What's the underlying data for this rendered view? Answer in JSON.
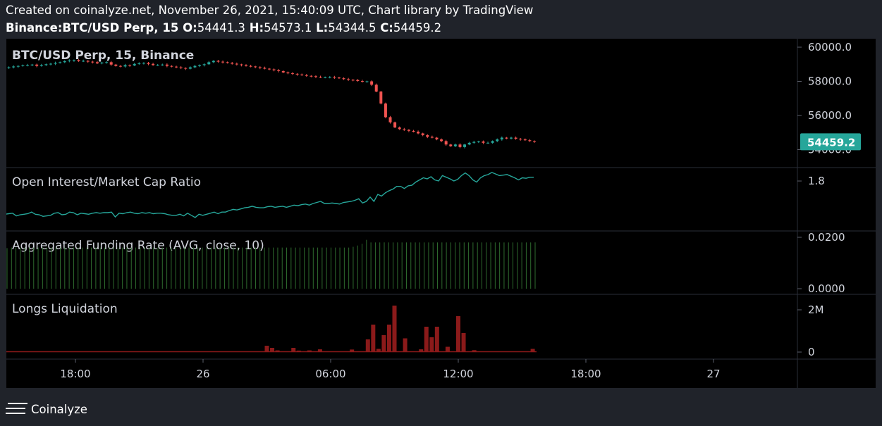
{
  "header": {
    "line1": "Created on coinalyze.net, November 26, 2021, 15:40:09 UTC, Chart library by TradingView",
    "symbol": "Binance:BTC/USD Perp, 15",
    "o_label": "O:",
    "o_value": "54441.3",
    "h_label": "H:",
    "h_value": "54573.1",
    "l_label": "L:",
    "l_value": "54344.5",
    "c_label": "C:",
    "c_value": "54459.2"
  },
  "footer": {
    "brand": "Coinalyze"
  },
  "colors": {
    "background": "#000000",
    "page": "#20232a",
    "grid": "#2a2e39",
    "text": "#ffffff",
    "axis_text": "#d1d4dc",
    "candle_up": "#26a69a",
    "candle_down": "#ef5350",
    "oi_line": "#26a69a",
    "funding_bar": "#2e6b2e",
    "liquidation_bar": "#8b1a1a",
    "price_tag": "#26a69a"
  },
  "chart_data": [
    {
      "type": "candlestick",
      "title": "BTC/USD Perp, 15, Binance",
      "ylim": [
        53500,
        60200
      ],
      "y_ticks": [
        "60000.0",
        "58000.0",
        "56000.0",
        "54000.0"
      ],
      "last_price": "54459.2",
      "note": "15-minute candles from Nov 25 ~15:30 to Nov 26 ~15:40 UTC; close values",
      "close": [
        58780,
        58820,
        58870,
        58900,
        58930,
        58950,
        58980,
        58900,
        58950,
        59000,
        59030,
        59080,
        59120,
        59180,
        59220,
        59240,
        59180,
        59200,
        59150,
        59120,
        59050,
        59100,
        59120,
        58980,
        58900,
        58870,
        58950,
        58930,
        59020,
        59050,
        59080,
        59020,
        58950,
        58970,
        58980,
        58900,
        58860,
        58820,
        58780,
        58740,
        58820,
        58900,
        58950,
        59000,
        59120,
        59200,
        59150,
        59120,
        59080,
        59030,
        58990,
        58950,
        58900,
        58870,
        58830,
        58790,
        58740,
        58700,
        58650,
        58600,
        58520,
        58470,
        58440,
        58400,
        58360,
        58320,
        58300,
        58260,
        58230,
        58240,
        58250,
        58220,
        58180,
        58130,
        58090,
        58080,
        58020,
        57980,
        58000,
        57800,
        57400,
        56700,
        55900,
        55600,
        55300,
        55200,
        55160,
        55100,
        55050,
        54950,
        54850,
        54750,
        54700,
        54600,
        54500,
        54300,
        54200,
        54300,
        54150,
        54300,
        54400,
        54450,
        54480,
        54400,
        54400,
        54500,
        54600,
        54700,
        54650,
        54700,
        54640,
        54600,
        54550,
        54500,
        54459
      ]
    },
    {
      "type": "line",
      "title": "Open Interest/Market Cap Ratio",
      "ylim": [
        1.0,
        2.05
      ],
      "y_ticks": [
        "1.8"
      ],
      "values": [
        1.18,
        1.19,
        1.2,
        1.15,
        1.17,
        1.18,
        1.19,
        1.22,
        1.18,
        1.17,
        1.14,
        1.15,
        1.16,
        1.2,
        1.21,
        1.17,
        1.18,
        1.22,
        1.21,
        1.17,
        1.2,
        1.19,
        1.18,
        1.2,
        1.21,
        1.2,
        1.21,
        1.21,
        1.22,
        1.13,
        1.2,
        1.19,
        1.21,
        1.22,
        1.2,
        1.19,
        1.21,
        1.2,
        1.21,
        1.19,
        1.2,
        1.2,
        1.19,
        1.17,
        1.16,
        1.16,
        1.18,
        1.15,
        1.2,
        1.16,
        1.12,
        1.18,
        1.16,
        1.18,
        1.2,
        1.22,
        1.19,
        1.22,
        1.22,
        1.25,
        1.27,
        1.26,
        1.28,
        1.3,
        1.31,
        1.33,
        1.31,
        1.3,
        1.3,
        1.32,
        1.33,
        1.31,
        1.32,
        1.33,
        1.31,
        1.33,
        1.35,
        1.34,
        1.36,
        1.37,
        1.35,
        1.38,
        1.4,
        1.42,
        1.38,
        1.38,
        1.39,
        1.38,
        1.37,
        1.4,
        1.41,
        1.42,
        1.44,
        1.47,
        1.39,
        1.42,
        1.5,
        1.42,
        1.55,
        1.52,
        1.58,
        1.62,
        1.65,
        1.7,
        1.7,
        1.66,
        1.71,
        1.72,
        1.78,
        1.82,
        1.86,
        1.84,
        1.88,
        1.82,
        1.8,
        1.9,
        1.87,
        1.84,
        1.8,
        1.83,
        1.9,
        1.95,
        1.9,
        1.82,
        1.78,
        1.86,
        1.9,
        1.92,
        1.96,
        1.93,
        1.9,
        1.91,
        1.92,
        1.89,
        1.86,
        1.82,
        1.86,
        1.85,
        1.87,
        1.87
      ]
    },
    {
      "type": "bar",
      "title": "Aggregated Funding Rate (AVG, close, 10)",
      "ylim": [
        0,
        0.026
      ],
      "y_ticks": [
        "0.0200",
        "0.0000"
      ],
      "values": [
        0.0158,
        0.016,
        0.016,
        0.016,
        0.016,
        0.016,
        0.016,
        0.016,
        0.016,
        0.016,
        0.016,
        0.016,
        0.016,
        0.016,
        0.016,
        0.016,
        0.016,
        0.016,
        0.016,
        0.016,
        0.016,
        0.016,
        0.016,
        0.016,
        0.016,
        0.016,
        0.016,
        0.016,
        0.016,
        0.016,
        0.016,
        0.016,
        0.016,
        0.016,
        0.016,
        0.016,
        0.016,
        0.016,
        0.016,
        0.016,
        0.016,
        0.016,
        0.016,
        0.016,
        0.016,
        0.016,
        0.016,
        0.016,
        0.016,
        0.016,
        0.016,
        0.016,
        0.016,
        0.016,
        0.016,
        0.016,
        0.016,
        0.016,
        0.016,
        0.016,
        0.016,
        0.016,
        0.016,
        0.016,
        0.016,
        0.016,
        0.016,
        0.016,
        0.016,
        0.016,
        0.016,
        0.016,
        0.016,
        0.016,
        0.016,
        0.016,
        0.016,
        0.016,
        0.0163,
        0.0168,
        0.0175,
        0.019,
        0.018,
        0.018,
        0.018,
        0.018,
        0.018,
        0.018,
        0.018,
        0.018,
        0.018,
        0.018,
        0.018,
        0.018,
        0.018,
        0.018,
        0.018,
        0.018,
        0.018,
        0.018,
        0.018,
        0.018,
        0.018,
        0.018,
        0.018,
        0.018,
        0.018,
        0.018,
        0.018,
        0.018,
        0.018,
        0.018,
        0.018,
        0.018,
        0.018,
        0.018,
        0.018,
        0.018,
        0.018,
        0.018
      ]
    },
    {
      "type": "bar",
      "title": "Longs Liquidation",
      "ylim": [
        0,
        2300000
      ],
      "y_ticks": [
        "2M",
        "0"
      ],
      "values": [
        10000,
        10000,
        10000,
        10000,
        10000,
        10000,
        10000,
        10000,
        10000,
        10000,
        10000,
        10000,
        10000,
        10000,
        10000,
        10000,
        10000,
        10000,
        10000,
        10000,
        10000,
        10000,
        10000,
        10000,
        10000,
        10000,
        10000,
        10000,
        10000,
        10000,
        10000,
        10000,
        10000,
        10000,
        10000,
        10000,
        10000,
        10000,
        10000,
        10000,
        10000,
        10000,
        10000,
        10000,
        10000,
        10000,
        10000,
        10000,
        10000,
        10000,
        10000,
        10000,
        10000,
        10000,
        10000,
        10000,
        10000,
        10000,
        10000,
        10000,
        10000,
        10000,
        10000,
        10000,
        10000,
        10000,
        10000,
        10000,
        10000,
        10000,
        10000,
        10000,
        10000,
        10000,
        10000,
        10000,
        10000,
        10000,
        10000,
        10000,
        10000,
        10000,
        10000,
        10000,
        10000,
        10000,
        10000,
        10000,
        10000,
        10000,
        10000,
        10000,
        10000,
        10000,
        10000,
        10000,
        10000,
        10000,
        10000,
        10000,
        10000,
        10000,
        10000,
        10000,
        10000,
        10000,
        10000,
        10000,
        10000,
        10000,
        10000,
        10000,
        10000,
        10000,
        10000,
        10000,
        10000,
        10000,
        10000,
        10000,
        10000,
        10000,
        10000,
        10000,
        10000,
        10000,
        10000,
        10000,
        10000,
        10000,
        10000,
        10000,
        10000,
        10000,
        10000,
        10000,
        10000,
        10000,
        10000,
        10000,
        10000,
        10000,
        10000,
        10000,
        10000,
        10000,
        10000,
        10000,
        10000,
        10000,
        10000,
        10000,
        10000,
        10000,
        10000,
        10000,
        10000,
        10000,
        10000,
        10000,
        10000,
        10000,
        10000,
        10000,
        10000,
        10000,
        10000,
        10000,
        10000,
        10000,
        10000,
        10000,
        10000,
        10000,
        10000,
        10000,
        10000,
        10000,
        10000,
        10000,
        10000,
        10000,
        10000,
        10000,
        10000,
        10000,
        10000,
        10000,
        10000,
        10000,
        10000,
        10000,
        10000,
        10000,
        10000,
        10000,
        10000,
        10000,
        10000,
        10000,
        10000,
        10000,
        10000,
        10000,
        10000,
        10000,
        10000,
        10000,
        10000,
        10000,
        10000,
        10000,
        10000,
        10000,
        10000,
        10000,
        10000,
        10000,
        10000,
        10000,
        10000,
        10000,
        10000,
        10000,
        10000,
        10000,
        10000,
        10000,
        10000,
        10000,
        10000,
        10000,
        10000,
        10000,
        10000,
        10000,
        10000,
        10000,
        10000,
        10000,
        10000,
        10000,
        10000,
        10000,
        10000,
        10000,
        10000,
        10000,
        10000,
        10000,
        10000,
        10000,
        10000,
        10000,
        10000,
        10000,
        10000
      ],
      "spikes": [
        {
          "x": "26 03:00",
          "value": 300000
        },
        {
          "x": "26 03:15",
          "value": 200000
        },
        {
          "x": "26 03:30",
          "value": 80000
        },
        {
          "x": "26 04:15",
          "value": 200000
        },
        {
          "x": "26 04:30",
          "value": 70000
        },
        {
          "x": "26 05:00",
          "value": 80000
        },
        {
          "x": "26 05:30",
          "value": 130000
        },
        {
          "x": "26 07:00",
          "value": 120000
        },
        {
          "x": "26 07:45",
          "value": 600000
        },
        {
          "x": "26 08:00",
          "value": 1300000
        },
        {
          "x": "26 08:15",
          "value": 150000
        },
        {
          "x": "26 08:30",
          "value": 800000
        },
        {
          "x": "26 08:45",
          "value": 1300000
        },
        {
          "x": "26 09:00",
          "value": 2200000
        },
        {
          "x": "26 09:30",
          "value": 650000
        },
        {
          "x": "26 10:15",
          "value": 130000
        },
        {
          "x": "26 10:30",
          "value": 1200000
        },
        {
          "x": "26 10:45",
          "value": 700000
        },
        {
          "x": "26 11:00",
          "value": 1200000
        },
        {
          "x": "26 11:30",
          "value": 250000
        },
        {
          "x": "26 12:00",
          "value": 1700000
        },
        {
          "x": "26 12:15",
          "value": 900000
        },
        {
          "x": "26 12:45",
          "value": 90000
        },
        {
          "x": "26 15:30",
          "value": 150000
        }
      ]
    }
  ],
  "x_axis": {
    "ticks": [
      "18:00",
      "26",
      "06:00",
      "12:00",
      "18:00",
      "27"
    ]
  }
}
